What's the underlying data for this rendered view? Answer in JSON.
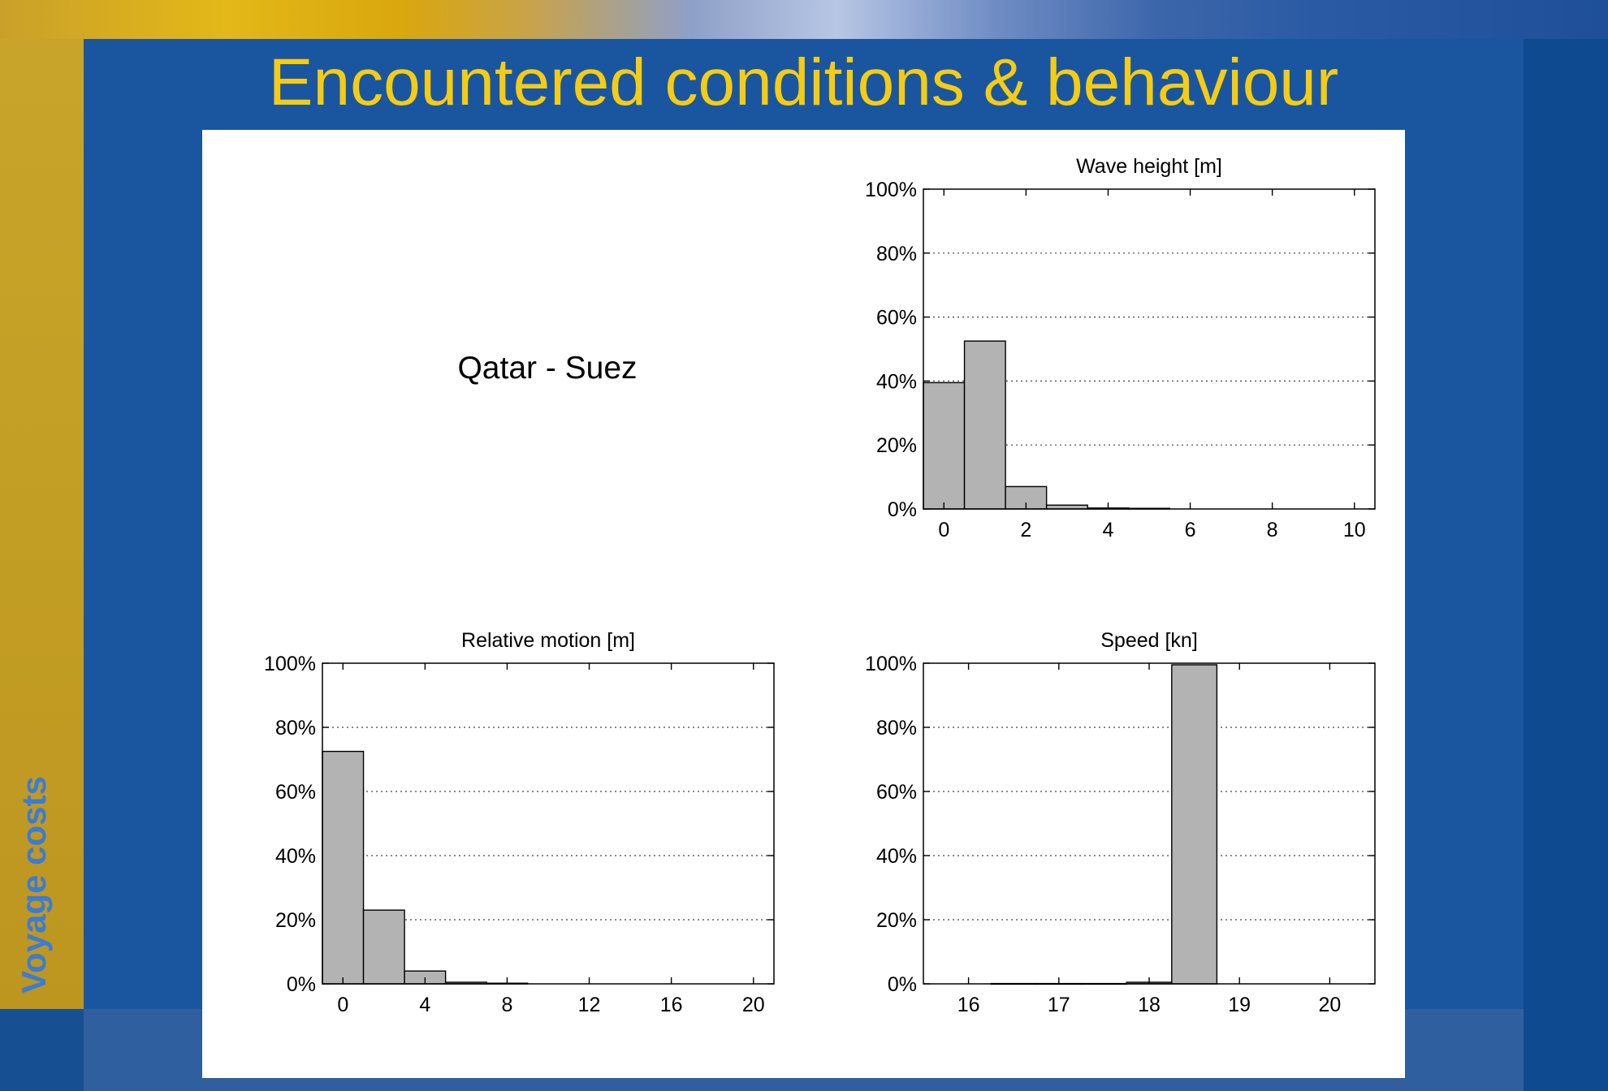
{
  "slide": {
    "title": "Encountered conditions & behaviour",
    "side_label": "Voyage costs",
    "route_label": "Qatar - Suez"
  },
  "colors": {
    "background": "#1a56a0",
    "title": "#f5cc14",
    "side_label": "#3a7cd6",
    "bar_fill": "#b3b3b3"
  },
  "chart_data": [
    {
      "type": "bar",
      "title": "Wave height [m]",
      "xlim": [
        -0.5,
        10.5
      ],
      "ylim": [
        0,
        100
      ],
      "xticks": [
        0,
        2,
        4,
        6,
        8,
        10
      ],
      "yticks": [
        "0%",
        "20%",
        "40%",
        "60%",
        "80%",
        "100%"
      ],
      "grid": "horizontal dotted",
      "bin_width": 1,
      "bars": [
        {
          "x": 0,
          "value": 39.5
        },
        {
          "x": 1,
          "value": 52.5
        },
        {
          "x": 2,
          "value": 7
        },
        {
          "x": 3,
          "value": 1.2
        },
        {
          "x": 4,
          "value": 0.3
        },
        {
          "x": 5,
          "value": 0.2
        }
      ]
    },
    {
      "type": "bar",
      "title": "Relative motion [m]",
      "xlim": [
        -1,
        21
      ],
      "ylim": [
        0,
        100
      ],
      "xticks": [
        0,
        4,
        8,
        12,
        16,
        20
      ],
      "yticks": [
        "0%",
        "20%",
        "40%",
        "60%",
        "80%",
        "100%"
      ],
      "grid": "horizontal dotted",
      "bin_width": 2,
      "bars": [
        {
          "x": 0,
          "value": 72.5
        },
        {
          "x": 2,
          "value": 23
        },
        {
          "x": 4,
          "value": 4
        },
        {
          "x": 6,
          "value": 0.5
        },
        {
          "x": 8,
          "value": 0.2
        }
      ]
    },
    {
      "type": "bar",
      "title": "Speed [kn]",
      "xlim": [
        15.5,
        20.5
      ],
      "ylim": [
        0,
        100
      ],
      "xticks": [
        16,
        17,
        18,
        19,
        20
      ],
      "yticks": [
        "0%",
        "20%",
        "40%",
        "60%",
        "80%",
        "100%"
      ],
      "grid": "horizontal dotted",
      "bin_width": 0.5,
      "bars": [
        {
          "x": 16.5,
          "value": 0.1
        },
        {
          "x": 17,
          "value": 0.1
        },
        {
          "x": 17.5,
          "value": 0.1
        },
        {
          "x": 18,
          "value": 0.5
        },
        {
          "x": 18.5,
          "value": 99.5
        }
      ]
    }
  ]
}
